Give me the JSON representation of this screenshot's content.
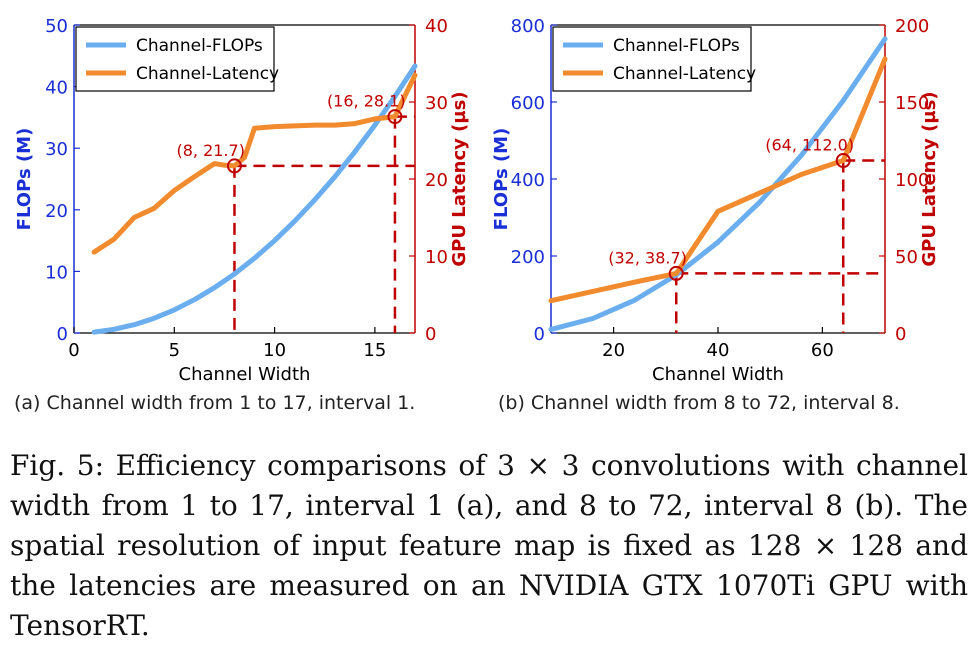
{
  "chart_data": [
    {
      "type": "line",
      "xlabel": "Channel Width",
      "ylabel_left": "FLOPs (M)",
      "ylabel_right": "GPU Latency (µs)",
      "xlim": [
        0,
        17
      ],
      "ylim_left": [
        0,
        50
      ],
      "ylim_right": [
        0,
        40
      ],
      "xticks": [
        0,
        5,
        10,
        15
      ],
      "yticks_left": [
        0,
        10,
        20,
        30,
        40,
        50
      ],
      "yticks_right": [
        0,
        10,
        20,
        30,
        40
      ],
      "legend_position": "top-left",
      "series": [
        {
          "name": "Channel-FLOPs",
          "axis": "left",
          "color": "#6aaef0",
          "x": [
            1,
            2,
            3,
            4,
            5,
            6,
            7,
            8,
            9,
            10,
            11,
            12,
            13,
            14,
            15,
            16,
            17
          ],
          "values": [
            0.15,
            0.6,
            1.35,
            2.4,
            3.75,
            5.4,
            7.35,
            9.6,
            12.15,
            15.0,
            18.15,
            21.6,
            25.35,
            29.4,
            33.75,
            38.4,
            43.35
          ]
        },
        {
          "name": "Channel-Latency",
          "axis": "right",
          "color": "#f28a2e",
          "x": [
            1,
            2,
            3,
            4,
            5,
            6,
            7,
            7.5,
            8,
            8.5,
            9,
            10,
            11,
            12,
            13,
            14,
            15,
            16,
            17
          ],
          "values": [
            10.5,
            12.2,
            15.0,
            16.2,
            18.5,
            20.3,
            22.0,
            21.8,
            21.7,
            22.8,
            26.6,
            26.8,
            26.9,
            27.0,
            27.0,
            27.2,
            27.8,
            28.1,
            33.5
          ]
        }
      ],
      "annotations": [
        {
          "label": "(8, 21.7)",
          "x": 8,
          "y": 21.7
        },
        {
          "label": "(16, 28.1)",
          "x": 16,
          "y": 28.1
        }
      ],
      "caption": "(a) Channel width from 1 to 17, interval 1."
    },
    {
      "type": "line",
      "xlabel": "Channel Width",
      "ylabel_left": "FLOPs (M)",
      "ylabel_right": "GPU Latency (µs)",
      "xlim": [
        8,
        72
      ],
      "ylim_left": [
        0,
        800
      ],
      "ylim_right": [
        0,
        200
      ],
      "xticks": [
        20,
        40,
        60
      ],
      "yticks_left": [
        0,
        200,
        400,
        600,
        800
      ],
      "yticks_right": [
        0,
        50,
        100,
        150,
        200
      ],
      "legend_position": "top-left",
      "series": [
        {
          "name": "Channel-FLOPs",
          "axis": "left",
          "color": "#6aaef0",
          "x": [
            8,
            16,
            24,
            32,
            40,
            48,
            56,
            64,
            72
          ],
          "values": [
            9.4,
            37.7,
            84.9,
            151,
            236,
            340,
            462,
            604,
            764
          ]
        },
        {
          "name": "Channel-Latency",
          "axis": "right",
          "color": "#f28a2e",
          "x": [
            8,
            16,
            24,
            32,
            40,
            48,
            56,
            64,
            72
          ],
          "values": [
            21,
            27,
            33,
            38.7,
            79,
            91,
            103,
            112,
            178
          ]
        }
      ],
      "annotations": [
        {
          "label": "(32, 38.7)",
          "x": 32,
          "y": 38.7
        },
        {
          "label": "(64, 112.0)",
          "x": 64,
          "y": 112.0
        }
      ],
      "caption": "(b) Channel width from 8 to 72, interval 8."
    }
  ],
  "figure_caption": "Fig. 5: Efficiency comparisons of 3 × 3 convolutions with channel width from 1 to 17, interval 1 (a), and 8 to 72, interval 8 (b). The spatial resolution of input feature map is fixed as 128 × 128 and the latencies are measured on an NVIDIA GTX 1070Ti GPU with TensorRT.",
  "colors": {
    "flops": "#6aaef0",
    "latency": "#f28a2e",
    "left_axis": "#1a2fd6",
    "right_axis": "#c00000",
    "marker": "#c00000"
  }
}
